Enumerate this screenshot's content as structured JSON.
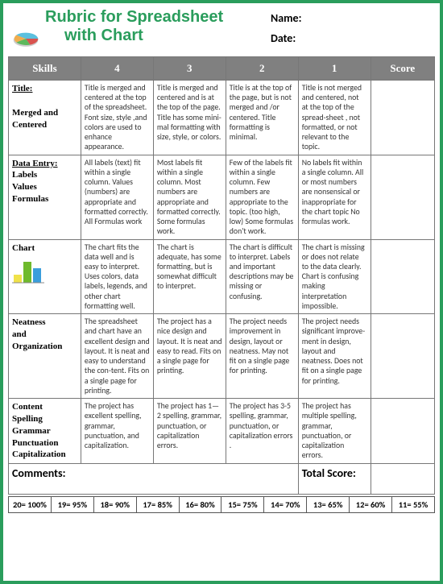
{
  "header": {
    "title_line1": "Rubric for Spreadsheet",
    "title_line2": "with Chart",
    "name_label": "Name:",
    "date_label": "Date:"
  },
  "col_widths": [
    "17%",
    "17%",
    "17%",
    "17%",
    "17%",
    "15%"
  ],
  "columns": [
    "Skills",
    "4",
    "3",
    "2",
    "1",
    "Score"
  ],
  "rows": [
    {
      "skill_html": "<span class='underline'>Title:</span><br><br>Merged and Centered",
      "c4": "Title is merged and centered at the top of the spreadsheet. Font size, style ,and colors are used to enhance appearance.",
      "c3": "Title is merged and centered and is at the top of the page. Title has some mini-mal formatting with size, style, or colors.",
      "c2": "Title is at the top of the page, but is not merged and /or centered. Title formatting is minimal.",
      "c1": "Title is not merged and centered, not at the top of the spread-sheet , not formatted, or not relevant to the topic.",
      "icon": null
    },
    {
      "skill_html": "<span class='underline'>Data Entry:</span><br>Labels<br>Values<br>Formulas",
      "c4": "All labels (text) fit within a single column. Values (numbers) are appropriate and formatted correctly. All Formulas work",
      "c3": "Most labels fit within a single column. Most numbers are appropriate and formatted correctly. Some formulas work.",
      "c2": "Few  of the labels fit within a single column. Few numbers are appropriate to the topic. (too high, low) Some formulas don't work.",
      "c1": "No labels fit within a single column.\nAll or most numbers are nonsensical or inappropriate for the chart topic\n\nNo formulas work.",
      "icon": null
    },
    {
      "skill_html": "Chart",
      "c4": "The chart fits the data well and is easy to interpret. Uses colors, data labels, legends, and other chart formatting  well.",
      "c3": "The chart  is adequate, has some  formatting, but is somewhat difficult to interpret.",
      "c2": "The chart  is difficult to interpret.  Labels and important descriptions may be missing or confusing.",
      "c1": "The chart is missing or does not relate to the data  clearly. Chart is confusing making interpretation impossible.",
      "icon": "bar"
    },
    {
      "skill_html": "Neatness<br>and<br>Organization",
      "c4": "The spreadsheet and chart have an excellent design and layout.  It is neat and easy to understand the con-tent. Fits on a single page for printing.",
      "c3": "The project has  a nice design and layout. It is neat and easy to read. Fits on a single page for printing.",
      "c2": "The project needs improvement in design, layout  or neatness. May not fit on a single page for printing.",
      "c1": "The project needs significant improve-ment in design, layout  and  neatness. Does not fit on a single page for printing.",
      "icon": null
    },
    {
      "skill_html": "Content<br>Spelling<br>Grammar<br>Punctuation<br>Capitalization",
      "c4": "The project  has excellent spelling, grammar, punctuation, and capitalization.",
      "c3": "The project has 1—2  spelling, grammar, punctuation, or capitalization errors.",
      "c2": "The project has 3-5 spelling, grammar, punctuation, or capitalization errors .",
      "c1": "The project has multiple spelling, grammar, punctuation, or capitalization errors.",
      "icon": null
    }
  ],
  "comments": {
    "label": "Comments:",
    "total_label": "Total Score:"
  },
  "grade_scale": [
    "20= 100%",
    "19= 95%",
    "18= 90%",
    "17= 85%",
    "16= 80%",
    "15= 75%",
    "14= 70%",
    "13= 65%",
    "12= 60%",
    "11= 55%"
  ],
  "pie_colors": [
    "#d9534f",
    "#5cb85c",
    "#f0ad4e",
    "#5bc0de"
  ],
  "bar_colors": [
    "#f0e24a",
    "#6fba2c",
    "#3a9edc"
  ]
}
